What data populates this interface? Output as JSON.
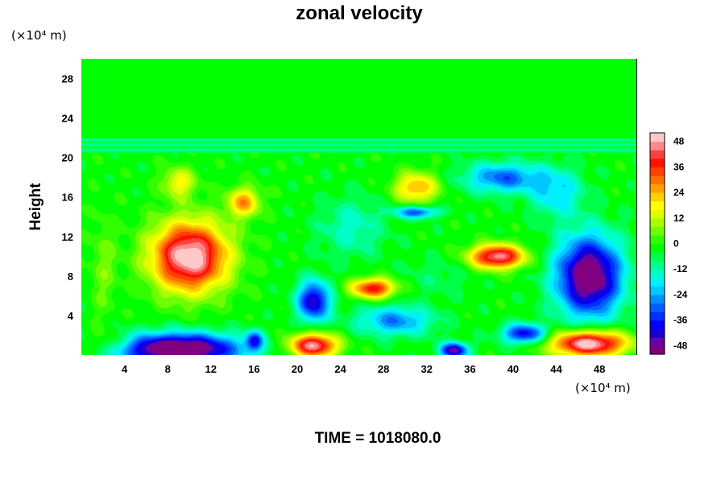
{
  "chart_data": {
    "type": "heatmap",
    "title": "zonal velocity",
    "xlabel": "",
    "ylabel": "Height",
    "x_unit": "(×10⁴ m)",
    "y_unit": "(×10⁴ m)",
    "xlim": [
      0,
      51.5
    ],
    "ylim": [
      0,
      30
    ],
    "x_ticks": [
      4,
      8,
      12,
      16,
      20,
      24,
      28,
      32,
      36,
      40,
      44,
      48
    ],
    "y_ticks": [
      4,
      8,
      12,
      16,
      20,
      24,
      28
    ],
    "colorbar": {
      "range": [
        -52,
        52
      ],
      "levels": 26,
      "tick_values": [
        48,
        36,
        24,
        12,
        0,
        -12,
        -24,
        -36,
        -48
      ],
      "colors": [
        "#800080",
        "#6a00a8",
        "#1800d0",
        "#0000ff",
        "#0030ff",
        "#0060ff",
        "#0090ff",
        "#00c8ff",
        "#00f0ff",
        "#00ffc8",
        "#00ff90",
        "#00ff48",
        "#00ff00",
        "#30ff00",
        "#70ff00",
        "#a8ff00",
        "#dfff00",
        "#ffff00",
        "#ffd000",
        "#ffa000",
        "#ff7000",
        "#ff4000",
        "#ff1000",
        "#ff4040",
        "#ff8888",
        "#ffc8c8"
      ]
    },
    "background_value": -2,
    "features": [
      {
        "x": 10,
        "y": 10,
        "sx": 3.5,
        "sy": 3.5,
        "value": 56
      },
      {
        "x": 15,
        "y": 15.5,
        "sx": 1.5,
        "sy": 1.5,
        "value": 28
      },
      {
        "x": 9,
        "y": 17.5,
        "sx": 1.5,
        "sy": 1.5,
        "value": 20
      },
      {
        "x": 9,
        "y": 0.6,
        "sx": 5.5,
        "sy": 1.6,
        "value": -60
      },
      {
        "x": 2.5,
        "y": 1.2,
        "sx": 2.0,
        "sy": 1.2,
        "value": 10
      },
      {
        "x": 47,
        "y": 8,
        "sx": 3,
        "sy": 4,
        "value": -55
      },
      {
        "x": 47,
        "y": 1.2,
        "sx": 3.5,
        "sy": 1.3,
        "value": 56
      },
      {
        "x": 21.5,
        "y": 1,
        "sx": 2.2,
        "sy": 1.2,
        "value": 50
      },
      {
        "x": 34.5,
        "y": 0.5,
        "sx": 1.3,
        "sy": 0.8,
        "value": -45
      },
      {
        "x": 38.5,
        "y": 10,
        "sx": 2.5,
        "sy": 1.2,
        "value": 50
      },
      {
        "x": 27,
        "y": 6.8,
        "sx": 2,
        "sy": 1,
        "value": 42
      },
      {
        "x": 21.5,
        "y": 5.5,
        "sx": 1.5,
        "sy": 2,
        "value": -42
      },
      {
        "x": 29,
        "y": 3.5,
        "sx": 3.5,
        "sy": 1.5,
        "value": -25
      },
      {
        "x": 31,
        "y": 17,
        "sx": 2,
        "sy": 1.5,
        "value": 28
      },
      {
        "x": 39,
        "y": 18,
        "sx": 3.5,
        "sy": 1.5,
        "value": -28
      },
      {
        "x": 44,
        "y": 16.5,
        "sx": 2.5,
        "sy": 2.5,
        "value": -18
      },
      {
        "x": 25,
        "y": 13,
        "sx": 3,
        "sy": 3,
        "value": -12
      },
      {
        "x": 31,
        "y": 14.5,
        "sx": 2,
        "sy": 0.6,
        "value": -30
      },
      {
        "x": 33,
        "y": 8,
        "sx": 3,
        "sy": 2,
        "value": -5
      },
      {
        "x": 41,
        "y": 2.2,
        "sx": 2,
        "sy": 1,
        "value": -38
      },
      {
        "x": 2,
        "y": 9,
        "sx": 1.2,
        "sy": 5,
        "value": 8
      },
      {
        "x": 16,
        "y": 1.5,
        "sx": 0.8,
        "sy": 1.0,
        "value": -30
      }
    ],
    "stratosphere": {
      "y_top": 22,
      "value": -4,
      "band_value": -8
    }
  },
  "footer": {
    "time_label": "TIME = 1018080.0"
  }
}
